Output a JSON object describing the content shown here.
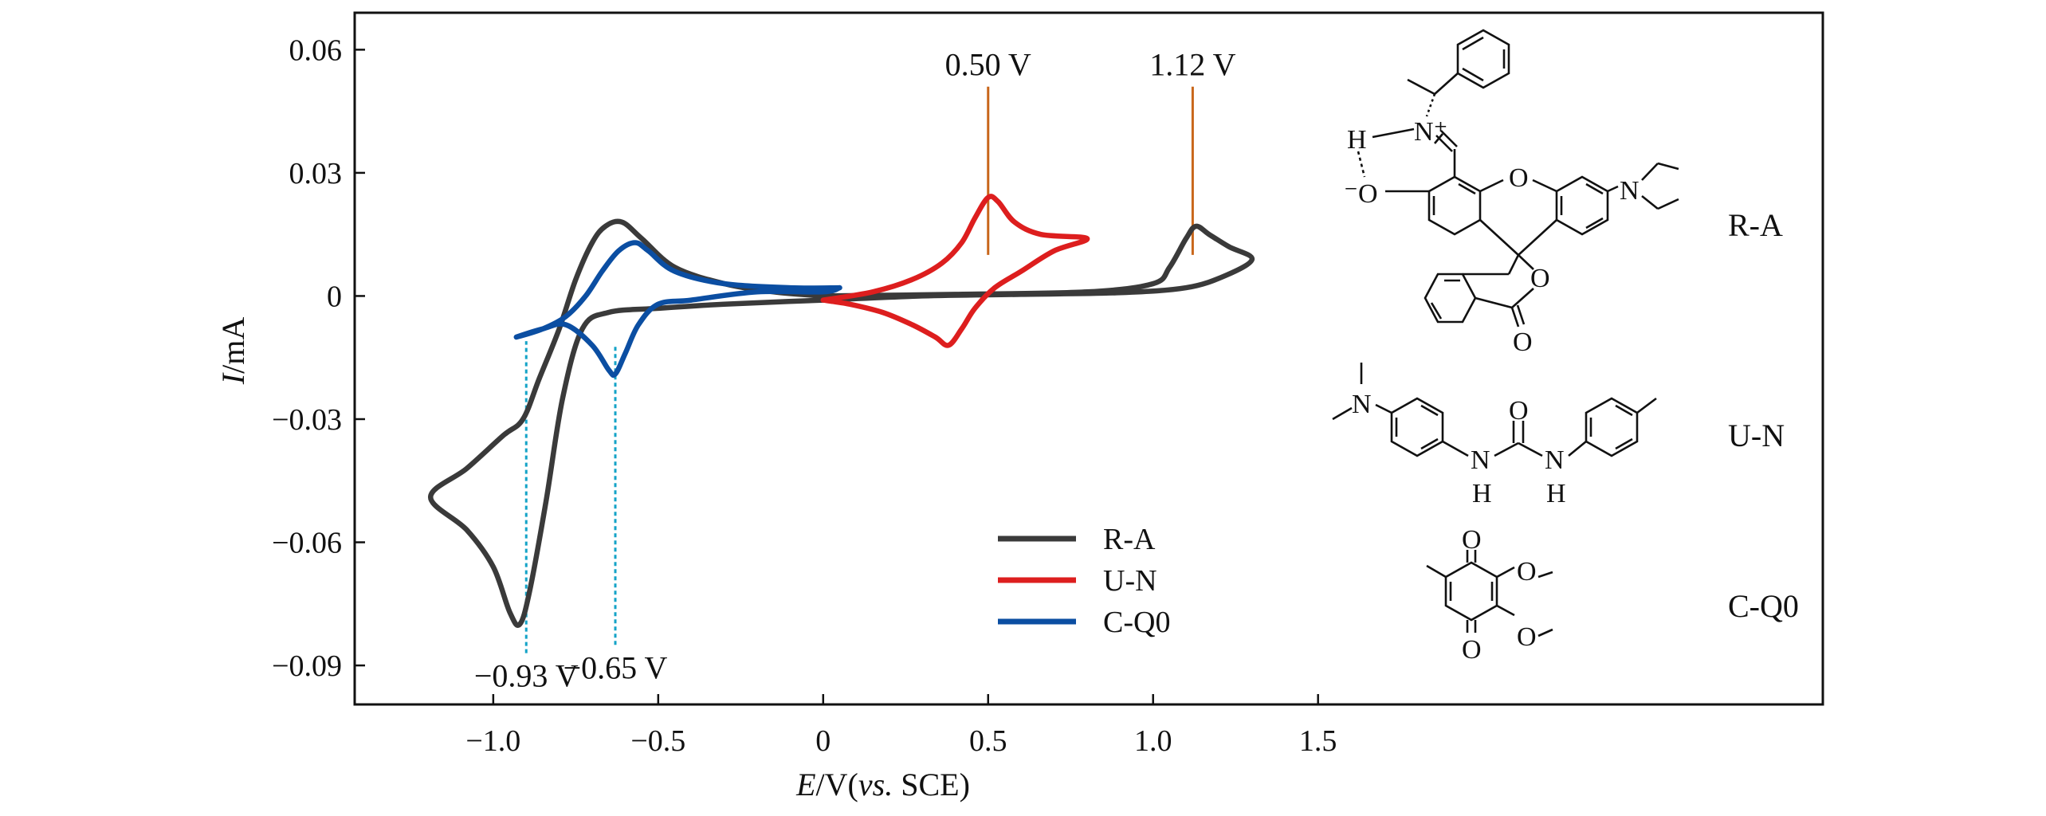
{
  "chart_data": {
    "type": "line",
    "chart_subtype": "cyclic voltammogram",
    "xlabel": {
      "italic": "E",
      "rest": "/V(",
      "vs": "vs.",
      "ref": " SCE)"
    },
    "ylabel": {
      "italic": "I",
      "rest": "/mA"
    },
    "xlim": [
      -1.42,
      3.03
    ],
    "ylim": [
      -0.0995,
      0.069
    ],
    "x_ticks": [
      {
        "value": -1.0,
        "label": "−1.0"
      },
      {
        "value": -0.5,
        "label": "−0.5"
      },
      {
        "value": 0.0,
        "label": "0"
      },
      {
        "value": 0.5,
        "label": "0.5"
      },
      {
        "value": 1.0,
        "label": "1.0"
      },
      {
        "value": 1.5,
        "label": "1.5"
      }
    ],
    "y_ticks": [
      {
        "value": 0.06,
        "label": "0.06"
      },
      {
        "value": 0.03,
        "label": "0.03"
      },
      {
        "value": 0.0,
        "label": "0"
      },
      {
        "value": -0.03,
        "label": "−0.03"
      },
      {
        "value": -0.06,
        "label": "−0.06"
      },
      {
        "value": -0.09,
        "label": "−0.09"
      }
    ],
    "legend_position": "center-bottom",
    "series": [
      {
        "name": "R-A",
        "color": "#3a3a3a",
        "points": [
          [
            0.0,
            0.0
          ],
          [
            0.4,
            0.0004
          ],
          [
            0.8,
            0.001
          ],
          [
            1.0,
            0.003
          ],
          [
            1.05,
            0.007
          ],
          [
            1.1,
            0.014
          ],
          [
            1.13,
            0.017
          ],
          [
            1.17,
            0.015
          ],
          [
            1.23,
            0.012
          ],
          [
            1.3,
            0.009
          ],
          [
            1.22,
            0.005
          ],
          [
            1.1,
            0.002
          ],
          [
            0.9,
            0.0008
          ],
          [
            0.6,
            0.0004
          ],
          [
            0.3,
            0.0
          ],
          [
            0.0,
            -0.001
          ],
          [
            -0.3,
            -0.002
          ],
          [
            -0.5,
            -0.003
          ],
          [
            -0.65,
            -0.004
          ],
          [
            -0.73,
            -0.008
          ],
          [
            -0.79,
            -0.025
          ],
          [
            -0.84,
            -0.05
          ],
          [
            -0.89,
            -0.072
          ],
          [
            -0.92,
            -0.08
          ],
          [
            -0.95,
            -0.077
          ],
          [
            -1.0,
            -0.066
          ],
          [
            -1.08,
            -0.057
          ],
          [
            -1.19,
            -0.049
          ],
          [
            -1.08,
            -0.042
          ],
          [
            -0.97,
            -0.034
          ],
          [
            -0.91,
            -0.03
          ],
          [
            -0.86,
            -0.02
          ],
          [
            -0.8,
            -0.008
          ],
          [
            -0.75,
            0.004
          ],
          [
            -0.7,
            0.013
          ],
          [
            -0.66,
            0.017
          ],
          [
            -0.61,
            0.018
          ],
          [
            -0.55,
            0.014
          ],
          [
            -0.45,
            0.007
          ],
          [
            -0.3,
            0.003
          ],
          [
            -0.15,
            0.001
          ],
          [
            0.0,
            0.0
          ]
        ]
      },
      {
        "name": "U-N",
        "color": "#dd1e1e",
        "points": [
          [
            0.0,
            -0.001
          ],
          [
            0.15,
            0.001
          ],
          [
            0.27,
            0.004
          ],
          [
            0.36,
            0.008
          ],
          [
            0.42,
            0.013
          ],
          [
            0.46,
            0.019
          ],
          [
            0.5,
            0.024
          ],
          [
            0.53,
            0.023
          ],
          [
            0.58,
            0.018
          ],
          [
            0.66,
            0.015
          ],
          [
            0.8,
            0.014
          ],
          [
            0.7,
            0.011
          ],
          [
            0.6,
            0.006
          ],
          [
            0.52,
            0.002
          ],
          [
            0.46,
            -0.003
          ],
          [
            0.42,
            -0.008
          ],
          [
            0.38,
            -0.012
          ],
          [
            0.34,
            -0.01
          ],
          [
            0.27,
            -0.007
          ],
          [
            0.18,
            -0.004
          ],
          [
            0.08,
            -0.002
          ],
          [
            0.0,
            -0.001
          ]
        ]
      },
      {
        "name": "C-Q0",
        "color": "#0b4ea2",
        "points": [
          [
            0.05,
            0.002
          ],
          [
            -0.1,
            0.002
          ],
          [
            -0.3,
            0.003
          ],
          [
            -0.45,
            0.006
          ],
          [
            -0.53,
            0.011
          ],
          [
            -0.57,
            0.013
          ],
          [
            -0.62,
            0.011
          ],
          [
            -0.67,
            0.006
          ],
          [
            -0.72,
            0.0
          ],
          [
            -0.78,
            -0.005
          ],
          [
            -0.85,
            -0.008
          ],
          [
            -0.93,
            -0.01
          ],
          [
            -0.85,
            -0.008
          ],
          [
            -0.78,
            -0.007
          ],
          [
            -0.7,
            -0.012
          ],
          [
            -0.65,
            -0.018
          ],
          [
            -0.63,
            -0.019
          ],
          [
            -0.6,
            -0.014
          ],
          [
            -0.56,
            -0.007
          ],
          [
            -0.5,
            -0.002
          ],
          [
            -0.4,
            -0.001
          ],
          [
            -0.2,
            0.001
          ],
          [
            0.0,
            0.001
          ],
          [
            0.05,
            0.002
          ]
        ]
      }
    ],
    "annotations": [
      {
        "label": "0.50 V",
        "x": 0.5,
        "y_from": 0.01,
        "y_to": 0.051,
        "color": "#c8661a",
        "style": "solid",
        "label_side": "top"
      },
      {
        "label": "1.12 V",
        "x": 1.12,
        "y_from": 0.01,
        "y_to": 0.051,
        "color": "#c8661a",
        "style": "solid",
        "label_side": "top"
      },
      {
        "label": "−0.93 V",
        "x": -0.9,
        "y_from": -0.087,
        "y_to": -0.011,
        "color": "#14a3c7",
        "style": "dashed",
        "label_side": "bottom"
      },
      {
        "label": "−0.65 V",
        "x": -0.63,
        "y_from": -0.085,
        "y_to": -0.012,
        "color": "#14a3c7",
        "style": "dashed",
        "label_side": "bottom"
      }
    ],
    "molecule_labels": [
      "R-A",
      "U-N",
      "C-Q0"
    ]
  },
  "structures": {
    "ra": {
      "n_plus": "N⁺",
      "h": "H",
      "o_minus": "⁻O",
      "o_ring": "O",
      "n_amine": "N",
      "o_lactone": "O",
      "o_carbonyl": "O"
    },
    "un": {
      "n_amine": "N",
      "o_urea": "O",
      "nh_left_n": "N",
      "nh_left_h": "H",
      "nh_right_n": "N",
      "nh_right_h": "H"
    },
    "cq": {
      "o_top": "O",
      "o_bottom": "O",
      "ome_upper": "O",
      "ome_lower": "O"
    }
  }
}
